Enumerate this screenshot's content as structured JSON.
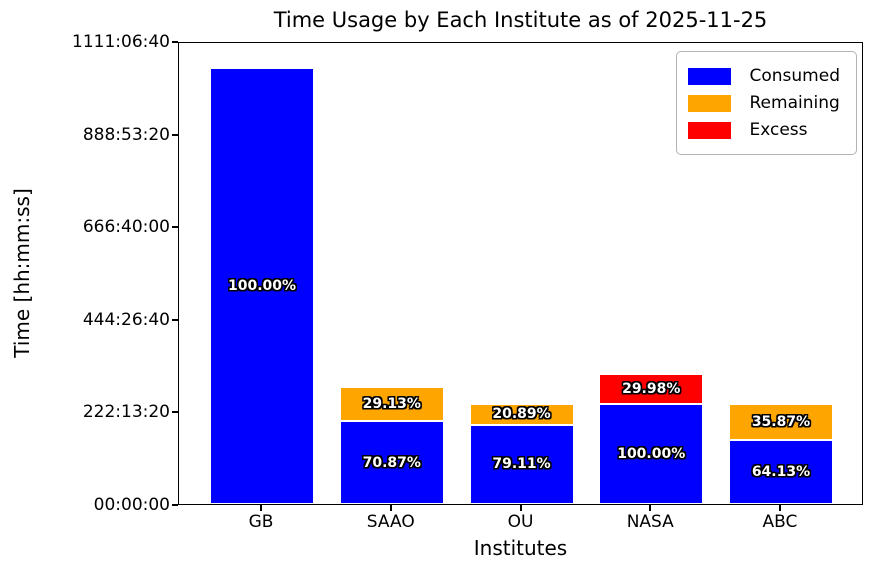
{
  "chart_data": {
    "type": "stacked_bar",
    "title": "Time Usage by Each Institute as of 2025-11-25",
    "xlabel": "Institutes",
    "ylabel": "Time [hh:mm:ss]",
    "categories": [
      "GB",
      "SAAO",
      "OU",
      "NASA",
      "ABC"
    ],
    "y_axis": {
      "unit": "seconds",
      "ylim": [
        0,
        4000000
      ],
      "tick_seconds": [
        0,
        800000,
        1600000,
        2400000,
        3200000,
        4000000
      ],
      "tick_labels": [
        "00:00:00",
        "222:13:20",
        "444:26:40",
        "666:40:00",
        "888:53:20",
        "1111:06:40"
      ],
      "grid": false
    },
    "legend": {
      "position": "upper-right",
      "entries": [
        {
          "label": "Consumed",
          "color": "#0000ff"
        },
        {
          "label": "Remaining",
          "color": "#ffa500"
        },
        {
          "label": "Excess",
          "color": "#ff0000"
        }
      ]
    },
    "bars": [
      {
        "category": "GB",
        "segments": [
          {
            "series": "Consumed",
            "color": "#0000ff",
            "seconds": 3770000,
            "percent_label": "100.00%"
          }
        ]
      },
      {
        "category": "SAAO",
        "segments": [
          {
            "series": "Consumed",
            "color": "#0000ff",
            "seconds": 714370,
            "percent_label": "70.87%"
          },
          {
            "series": "Remaining",
            "color": "#ffa500",
            "seconds": 293630,
            "percent_label": "29.13%"
          }
        ]
      },
      {
        "category": "OU",
        "segments": [
          {
            "series": "Consumed",
            "color": "#0000ff",
            "seconds": 683510,
            "percent_label": "79.11%"
          },
          {
            "series": "Remaining",
            "color": "#ffa500",
            "seconds": 180490,
            "percent_label": "20.89%"
          }
        ]
      },
      {
        "category": "NASA",
        "segments": [
          {
            "series": "Consumed",
            "color": "#0000ff",
            "seconds": 864000,
            "percent_label": "100.00%"
          },
          {
            "series": "Excess",
            "color": "#ff0000",
            "seconds": 259027,
            "percent_label": "29.98%"
          }
        ]
      },
      {
        "category": "ABC",
        "segments": [
          {
            "series": "Consumed",
            "color": "#0000ff",
            "seconds": 554083,
            "percent_label": "64.13%"
          },
          {
            "series": "Remaining",
            "color": "#ffa500",
            "seconds": 309917,
            "percent_label": "35.87%"
          }
        ]
      }
    ],
    "colors": {
      "consumed": "#0000ff",
      "remaining": "#ffa500",
      "excess": "#ff0000"
    }
  }
}
